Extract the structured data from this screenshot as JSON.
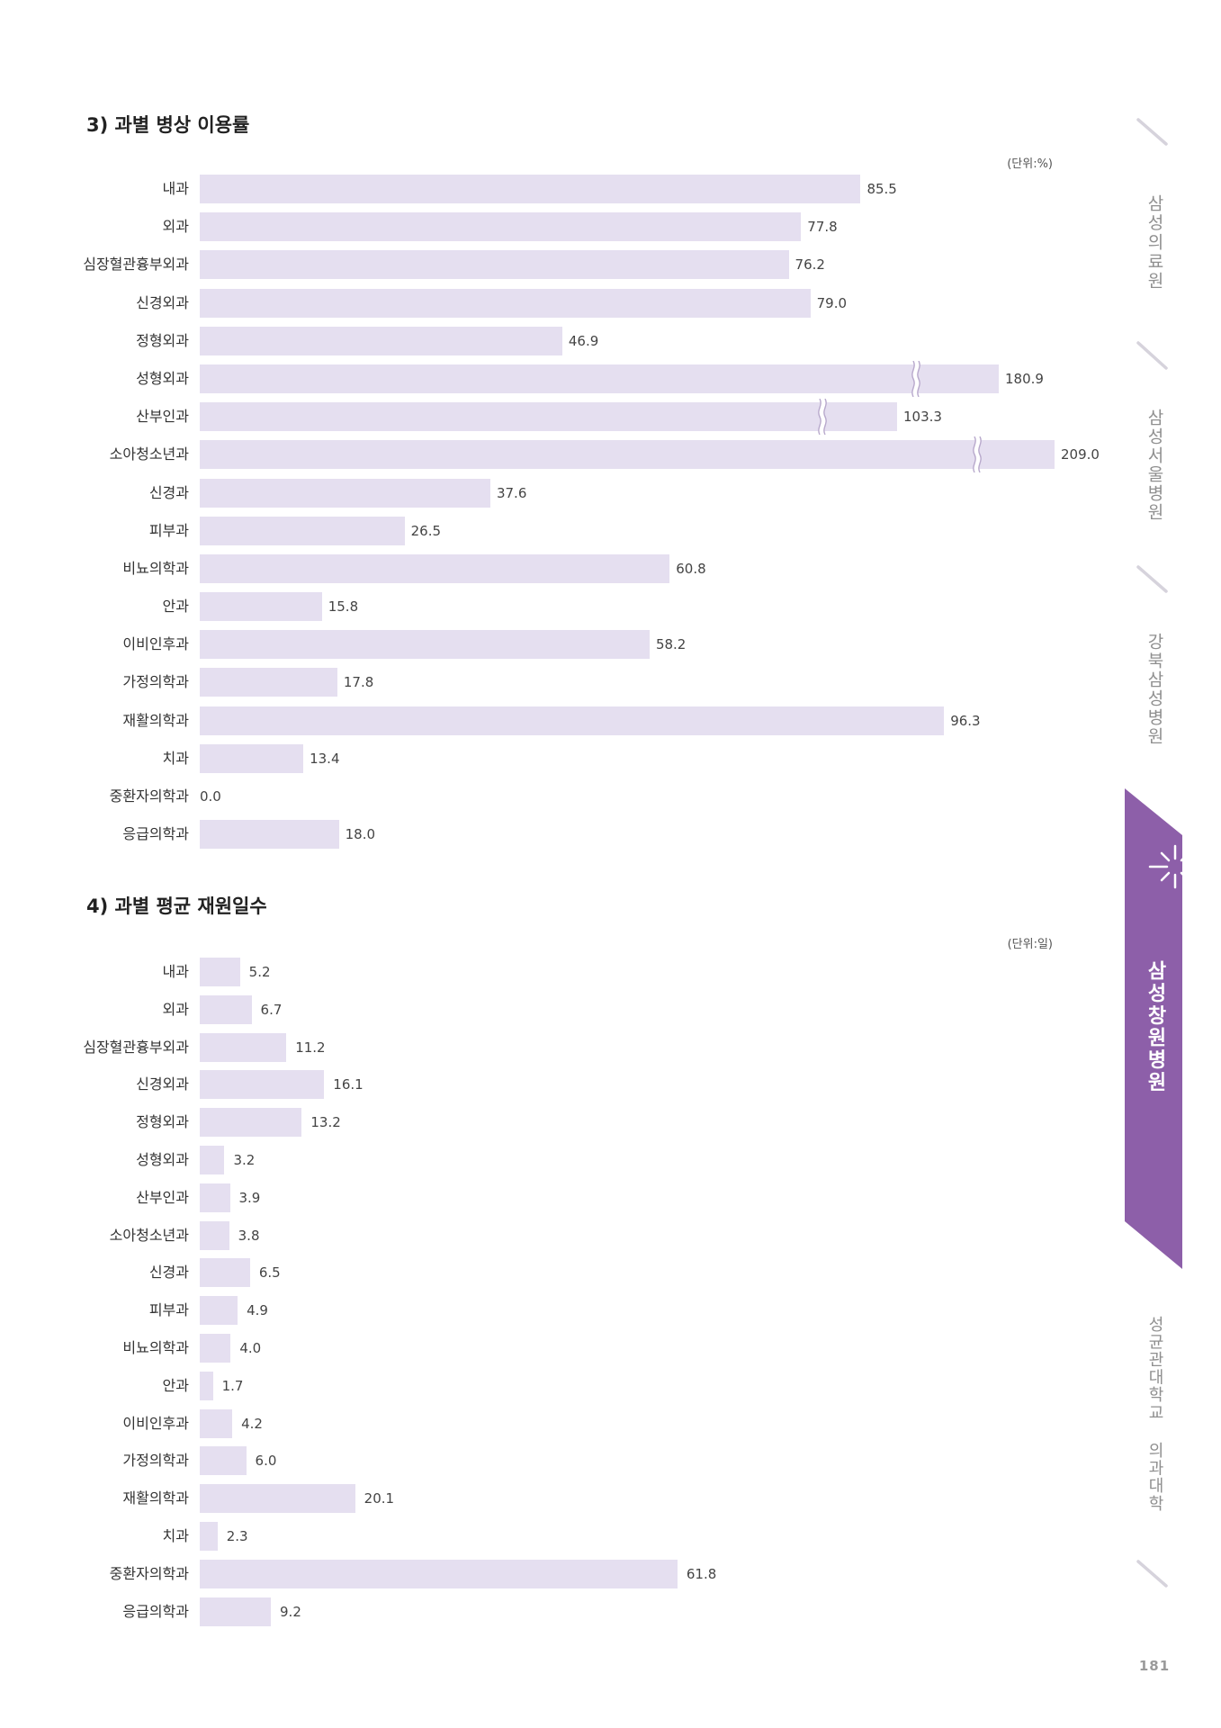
{
  "page": {
    "number": "181"
  },
  "sidebar": {
    "items": [
      "삼성의료원",
      "삼성서울병원",
      "강북삼성병원",
      "삼성창원병원",
      "성균관대학교 의과대학"
    ],
    "active_index": 3
  },
  "colors": {
    "bar": "#e5dff0",
    "accent": "#8d5fa9",
    "break_mark": "#b8a9cc",
    "divider": "#d6d3dc",
    "sidebar_text": "#8f8f8f"
  },
  "icons": {
    "active_tab": "starburst-icon",
    "divider": "slash-divider"
  },
  "chart_data": [
    {
      "type": "bar",
      "orientation": "horizontal",
      "title": "3) 과별 병상 이용률",
      "unit": "(단위:%)",
      "decimals": 1,
      "categories": [
        "내과",
        "외과",
        "심장혈관흉부외과",
        "신경외과",
        "정형외과",
        "성형외과",
        "산부인과",
        "소아청소년과",
        "신경과",
        "피부과",
        "비뇨의학과",
        "안과",
        "이비인후과",
        "가정의학과",
        "재활의학과",
        "치과",
        "중환자의학과",
        "응급의학과"
      ],
      "values": [
        85.5,
        77.8,
        76.2,
        79.0,
        46.9,
        180.9,
        103.3,
        209.0,
        37.6,
        26.5,
        60.8,
        15.8,
        58.2,
        17.8,
        96.3,
        13.4,
        0.0,
        18.0
      ],
      "broken": [
        false,
        false,
        false,
        false,
        false,
        true,
        true,
        true,
        false,
        false,
        false,
        false,
        false,
        false,
        false,
        false,
        false,
        false
      ],
      "grid": false
    },
    {
      "type": "bar",
      "orientation": "horizontal",
      "title": "4) 과별 평균 재원일수",
      "unit": "(단위:일)",
      "decimals": 1,
      "categories": [
        "내과",
        "외과",
        "심장혈관흉부외과",
        "신경외과",
        "정형외과",
        "성형외과",
        "산부인과",
        "소아청소년과",
        "신경과",
        "피부과",
        "비뇨의학과",
        "안과",
        "이비인후과",
        "가정의학과",
        "재활의학과",
        "치과",
        "중환자의학과",
        "응급의학과"
      ],
      "values": [
        5.2,
        6.7,
        11.2,
        16.1,
        13.2,
        3.2,
        3.9,
        3.8,
        6.5,
        4.9,
        4.0,
        1.7,
        4.2,
        6.0,
        20.1,
        2.3,
        61.8,
        9.2
      ],
      "broken": [
        false,
        false,
        false,
        false,
        false,
        false,
        false,
        false,
        false,
        false,
        false,
        false,
        false,
        false,
        false,
        false,
        false,
        false
      ],
      "grid": false
    }
  ]
}
